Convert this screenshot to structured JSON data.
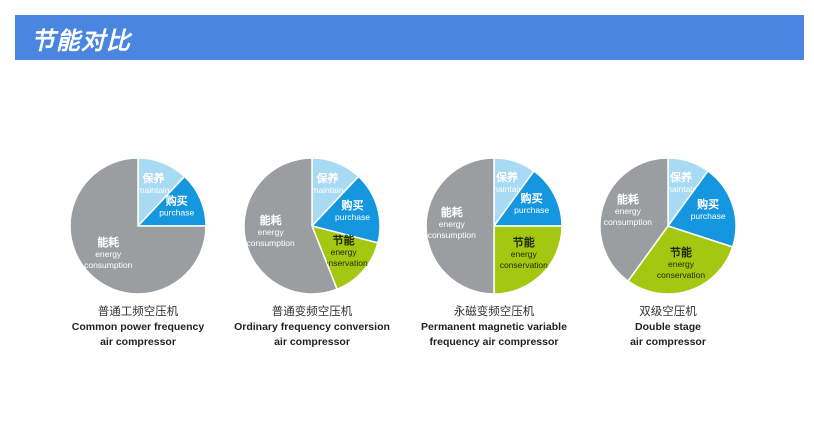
{
  "header": {
    "title": "节能对比"
  },
  "colors": {
    "header_bg": "#4a86e0",
    "energy": "#9a9ea1",
    "maintain": "#a9daf4",
    "purchase": "#1597e0",
    "conservation": "#a4c711",
    "label": "#ffffff"
  },
  "chart_data": [
    {
      "type": "pie",
      "slices": [
        {
          "key": "maintain",
          "zh": "保养",
          "en": [
            "maintain"
          ],
          "percent": 12
        },
        {
          "key": "purchase",
          "zh": "购买",
          "en": [
            "purchase"
          ],
          "percent": 13
        },
        {
          "key": "energy",
          "zh": "能耗",
          "en": [
            "energy",
            "consumption"
          ],
          "percent": 75
        }
      ],
      "caption": {
        "zh": "普通工频空压机",
        "en": [
          "Common power frequency",
          "air compressor"
        ]
      }
    },
    {
      "type": "pie",
      "slices": [
        {
          "key": "maintain",
          "zh": "保养",
          "en": [
            "maintain"
          ],
          "percent": 12
        },
        {
          "key": "purchase",
          "zh": "购买",
          "en": [
            "purchase"
          ],
          "percent": 17
        },
        {
          "key": "conservation",
          "zh": "节能",
          "en": [
            "energy",
            "conservation"
          ],
          "percent": 15
        },
        {
          "key": "energy",
          "zh": "能耗",
          "en": [
            "energy",
            "consumption"
          ],
          "percent": 56
        }
      ],
      "caption": {
        "zh": "普通变频空压机",
        "en": [
          "Ordinary frequency conversion",
          "air compressor"
        ]
      }
    },
    {
      "type": "pie",
      "slices": [
        {
          "key": "maintain",
          "zh": "保养",
          "en": [
            "maintain"
          ],
          "percent": 10
        },
        {
          "key": "purchase",
          "zh": "购买",
          "en": [
            "purchase"
          ],
          "percent": 15
        },
        {
          "key": "conservation",
          "zh": "节能",
          "en": [
            "energy",
            "conservation"
          ],
          "percent": 25
        },
        {
          "key": "energy",
          "zh": "能耗",
          "en": [
            "energy",
            "consumption"
          ],
          "percent": 50
        }
      ],
      "caption": {
        "zh": "永磁变频空压机",
        "en": [
          "Permanent magnetic variable",
          "frequency air compressor"
        ]
      }
    },
    {
      "type": "pie",
      "slices": [
        {
          "key": "maintain",
          "zh": "保养",
          "en": [
            "maintain"
          ],
          "percent": 10
        },
        {
          "key": "purchase",
          "zh": "购买",
          "en": [
            "purchase"
          ],
          "percent": 20
        },
        {
          "key": "conservation",
          "zh": "节能",
          "en": [
            "energy",
            "conservation"
          ],
          "percent": 30
        },
        {
          "key": "energy",
          "zh": "能耗",
          "en": [
            "energy",
            "consumption"
          ],
          "percent": 40
        }
      ],
      "caption": {
        "zh": "双级空压机",
        "en": [
          "Double stage",
          "air compressor"
        ]
      }
    }
  ]
}
